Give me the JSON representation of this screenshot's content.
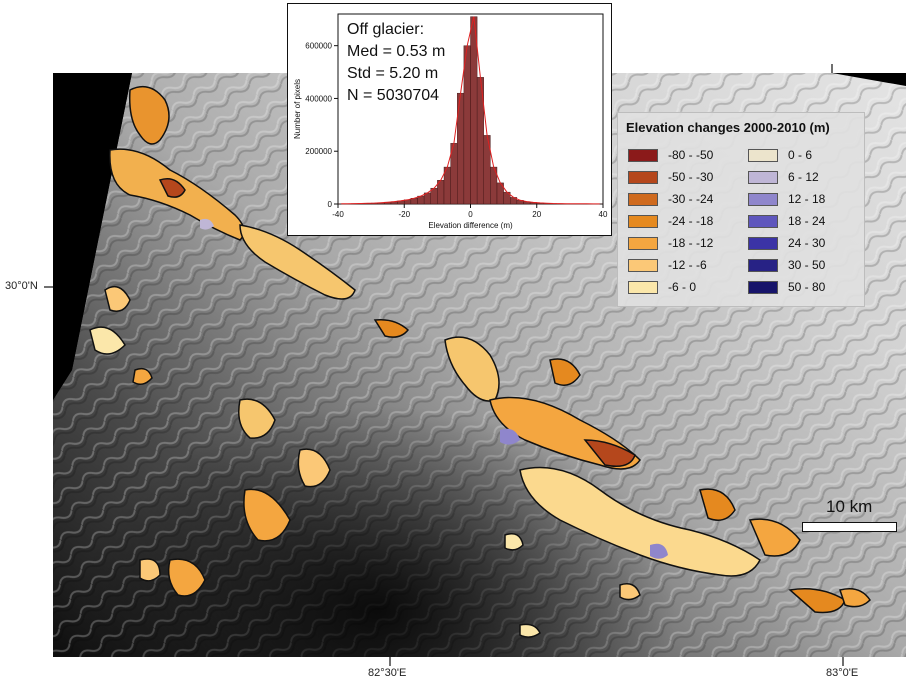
{
  "map": {
    "graticule": {
      "lat_label": "30°0'N",
      "lon_labels": [
        "82°30'E",
        "83°0'E"
      ]
    },
    "colors": {
      "hillshade_light": "#e6e6e6",
      "hillshade_dark": "#1e1e1e",
      "glacier_outline": "#111111"
    }
  },
  "inset": {
    "text_lines": [
      "Off glacier:",
      "Med = 0.53 m",
      "Std = 5.20 m",
      "N = 5030704"
    ],
    "ylabel": "Number of pixels",
    "xlabel": "Elevation difference (m)",
    "bar_fill": "#8b3a3a",
    "curve_color": "#e02020"
  },
  "legend": {
    "title": "Elevation changes 2000-2010 (m)",
    "items": [
      {
        "label": "-80 - -50",
        "color": "#8b1a1a"
      },
      {
        "label": "-50 - -30",
        "color": "#b5471c"
      },
      {
        "label": "-30 - -24",
        "color": "#cf6a1e"
      },
      {
        "label": "-24 - -18",
        "color": "#e5891f"
      },
      {
        "label": "-18 - -12",
        "color": "#f4a640"
      },
      {
        "label": "-12 - -6",
        "color": "#fbc877"
      },
      {
        "label": "-6 - 0",
        "color": "#fbe7aa"
      },
      {
        "label": "0 - 6",
        "color": "#ece4cc"
      },
      {
        "label": "6 - 12",
        "color": "#bfb6d6"
      },
      {
        "label": "12 - 18",
        "color": "#8f86cc"
      },
      {
        "label": "18 - 24",
        "color": "#5e56bd"
      },
      {
        "label": "24 - 30",
        "color": "#3b33a6"
      },
      {
        "label": "30 - 50",
        "color": "#272285"
      },
      {
        "label": "50 - 80",
        "color": "#17146a"
      }
    ]
  },
  "scale": {
    "label": "10 km"
  },
  "chart_data": {
    "type": "bar",
    "ylabel": "Number of pixels",
    "xlabel": "Elevation difference (m)",
    "xlim": [
      -40,
      40
    ],
    "ylim": [
      0,
      720000
    ],
    "xticks": [
      -40,
      -20,
      0,
      20,
      40
    ],
    "yticks": [
      0,
      200000,
      400000,
      600000
    ],
    "bin_width": 2,
    "x": [
      -40,
      -38,
      -36,
      -34,
      -32,
      -30,
      -28,
      -26,
      -24,
      -22,
      -20,
      -18,
      -16,
      -14,
      -12,
      -10,
      -8,
      -6,
      -4,
      -2,
      0,
      2,
      4,
      6,
      8,
      10,
      12,
      14,
      16,
      18,
      20,
      22,
      24,
      26,
      28,
      30,
      32,
      34,
      36,
      38
    ],
    "values": [
      1000,
      1000,
      1500,
      2000,
      2500,
      3500,
      5000,
      7000,
      9000,
      12000,
      16000,
      22000,
      30000,
      42000,
      60000,
      90000,
      140000,
      230000,
      420000,
      600000,
      710000,
      480000,
      260000,
      140000,
      80000,
      45000,
      25000,
      14000,
      9000,
      6000,
      4000,
      3000,
      2000,
      1500,
      1200,
      1000,
      800,
      600,
      500,
      400
    ]
  }
}
